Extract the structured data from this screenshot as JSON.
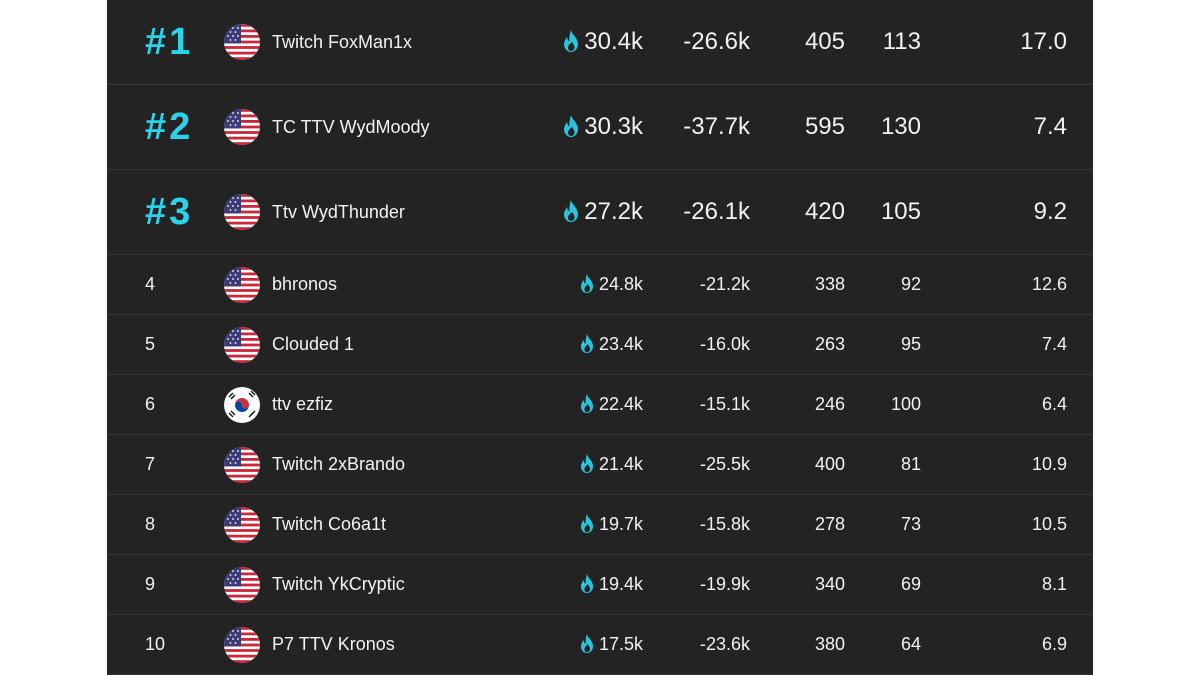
{
  "table": {
    "rows": [
      {
        "rank": "#1",
        "player": "Twitch FoxMan1x",
        "values": [
          "30.4k",
          "-26.6k",
          "405",
          "113",
          "17.0"
        ]
      },
      {
        "rank": "#2",
        "player": "TC TTV WydMoody",
        "values": [
          "30.3k",
          "-37.7k",
          "595",
          "130",
          "7.4"
        ]
      },
      {
        "rank": "#3",
        "player": "Ttv WydThunder",
        "values": [
          "27.2k",
          "-26.1k",
          "420",
          "105",
          "9.2"
        ]
      },
      {
        "rank": "4",
        "player": "bhronos",
        "values": [
          "24.8k",
          "-21.2k",
          "338",
          "92",
          "12.6"
        ]
      },
      {
        "rank": "5",
        "player": "Clouded 1",
        "values": [
          "23.4k",
          "-16.0k",
          "263",
          "95",
          "7.4"
        ]
      },
      {
        "rank": "6",
        "player": "ttv ezfiz",
        "values": [
          "22.4k",
          "-15.1k",
          "246",
          "100",
          "6.4"
        ]
      },
      {
        "rank": "7",
        "player": "Twitch 2xBrando",
        "values": [
          "21.4k",
          "-25.5k",
          "400",
          "81",
          "10.9"
        ]
      },
      {
        "rank": "8",
        "player": "Twitch Co6a1t",
        "values": [
          "19.7k",
          "-15.8k",
          "278",
          "73",
          "10.5"
        ]
      },
      {
        "rank": "9",
        "player": "Twitch YkCryptic",
        "values": [
          "19.4k",
          "-19.9k",
          "340",
          "69",
          "8.1"
        ]
      },
      {
        "rank": "10",
        "player": "P7 TTV Kronos",
        "values": [
          "17.5k",
          "-23.6k",
          "380",
          "64",
          "6.9"
        ]
      }
    ]
  }
}
